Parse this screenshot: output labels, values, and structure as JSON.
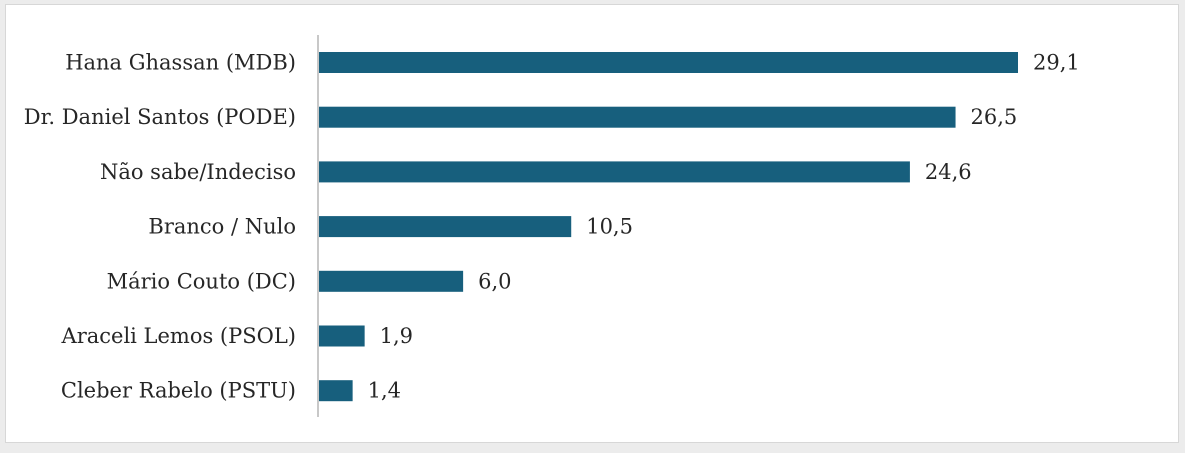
{
  "chart_data": {
    "type": "bar",
    "orientation": "horizontal",
    "title": "",
    "xlabel": "",
    "ylabel": "",
    "categories": [
      "Hana Ghassan (MDB)",
      "Dr. Daniel Santos (PODE)",
      "Não sabe/Indeciso",
      "Branco / Nulo",
      "Mário Couto (DC)",
      "Araceli Lemos (PSOL)",
      "Cleber Rabelo (PSTU)"
    ],
    "values": [
      29.1,
      26.5,
      24.6,
      10.5,
      6.0,
      1.9,
      1.4
    ],
    "value_labels": [
      "29,1",
      "26,5",
      "24,6",
      "10,5",
      "6,0",
      "1,9",
      "1,4"
    ],
    "xlim": [
      0,
      29.1
    ],
    "grid": false,
    "legend": "none",
    "bar_color": "#175f7d",
    "axis_color": "#c8c8c8"
  }
}
